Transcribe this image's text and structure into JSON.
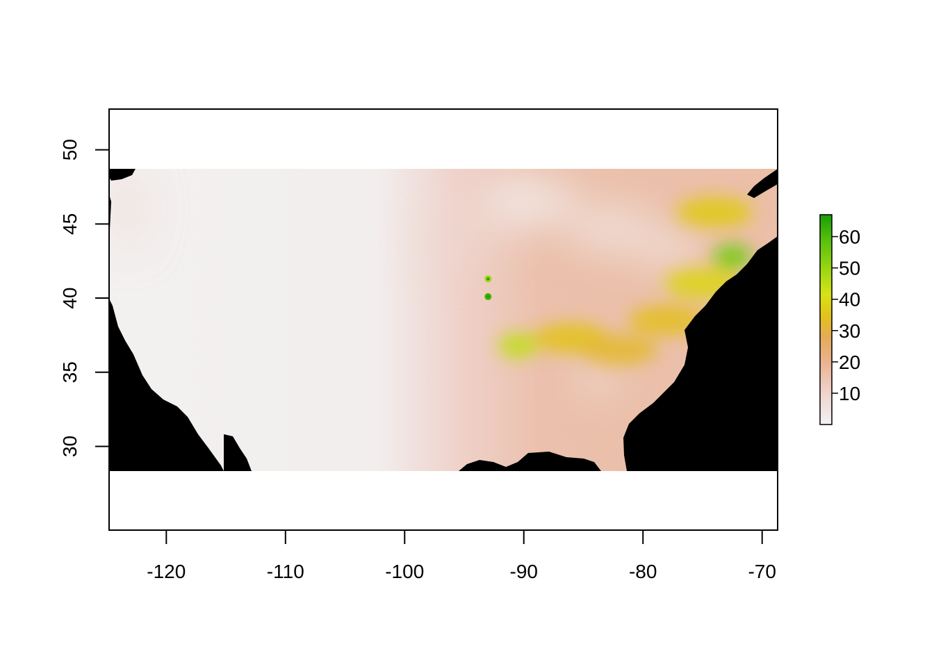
{
  "map": {
    "type": "raster",
    "title": "",
    "xlabel": "",
    "ylabel": "",
    "x_extent": [
      -124.8,
      -68.7
    ],
    "y_extent": [
      24.35,
      52.75
    ],
    "raster_extent": {
      "xmin": -124.8,
      "xmax": -68.7,
      "ymin": 29.0,
      "ymax": 48.75
    },
    "x_ticks": [
      -120,
      -110,
      -100,
      -90,
      -80,
      -70
    ],
    "x_tick_labels": [
      "-120",
      "-110",
      "-100",
      "-90",
      "-80",
      "-70"
    ],
    "y_ticks": [
      30,
      35,
      40,
      45,
      50
    ],
    "y_tick_labels": [
      "30",
      "35",
      "40",
      "45",
      "50"
    ],
    "na_color": "#000000",
    "background": "#ffffff",
    "colorbar": {
      "min": 0,
      "max": 67,
      "ticks": [
        10,
        20,
        30,
        40,
        50,
        60
      ],
      "tick_labels": [
        "10",
        "20",
        "30",
        "40",
        "50",
        "60"
      ],
      "colors": [
        "#F2F2F2",
        "#EFD4CC",
        "#EAB28F",
        "#E5AC56",
        "#E2C31A",
        "#D7E316",
        "#9BD612",
        "#5BC20E",
        "#199E06"
      ]
    },
    "data_regions": {
      "description_scale": "values 0-67",
      "west_value": 2,
      "plains_value": 10,
      "east_value": 18,
      "high_band": [
        {
          "lon": -90.5,
          "lat": 36.8,
          "value": 45
        },
        {
          "lon": -86.0,
          "lat": 37.3,
          "value": 33
        },
        {
          "lon": -82.0,
          "lat": 36.5,
          "value": 30
        },
        {
          "lon": -78.0,
          "lat": 38.5,
          "value": 32
        },
        {
          "lon": -75.0,
          "lat": 41.0,
          "value": 38
        },
        {
          "lon": -72.5,
          "lat": 42.8,
          "value": 55
        },
        {
          "lon": -74.0,
          "lat": 45.8,
          "value": 35
        },
        {
          "lon": -93.0,
          "lat": 40.1,
          "value": 62
        },
        {
          "lon": -93.0,
          "lat": 41.3,
          "value": 50
        }
      ]
    }
  }
}
